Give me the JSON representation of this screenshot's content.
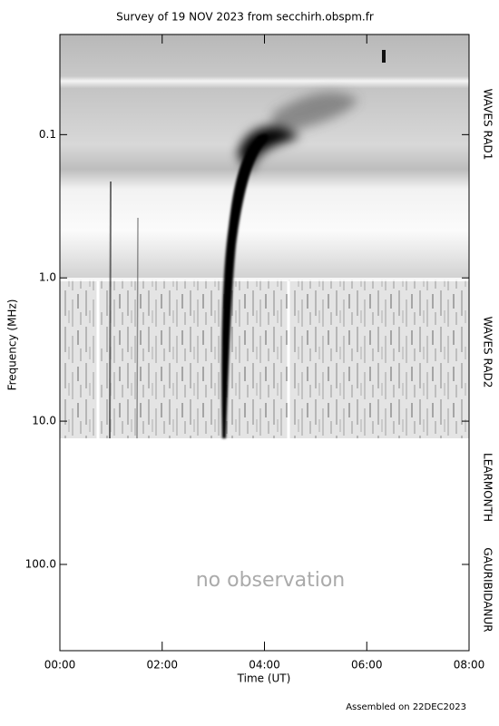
{
  "chart_data": {
    "type": "spectrogram",
    "title": "Survey of 19 NOV 2023 from secchirh.obspm.fr",
    "x_label": "Time (UT)",
    "y_label": "Frequency (MHz)",
    "xlim": [
      0,
      8
    ],
    "xticks": [
      {
        "value": 0,
        "label": "00:00"
      },
      {
        "value": 2,
        "label": "02:00"
      },
      {
        "value": 4,
        "label": "04:00"
      },
      {
        "value": 6,
        "label": "06:00"
      },
      {
        "value": 8,
        "label": "08:00"
      }
    ],
    "ylim": [
      0.02,
      400
    ],
    "y_scale": "log",
    "y_inverted": true,
    "yticks": [
      0.1,
      {
        "value": 1,
        "label": "1.0"
      },
      {
        "value": 10,
        "label": "10.0"
      },
      {
        "value": 100,
        "label": "100.0"
      }
    ],
    "instruments": [
      "WAVES RAD1",
      "WAVES RAD2",
      "LEARMONTH",
      "GAURIBIDANUR"
    ],
    "annotation": "no observation",
    "footer": "Assembled on 22DEC2023"
  }
}
